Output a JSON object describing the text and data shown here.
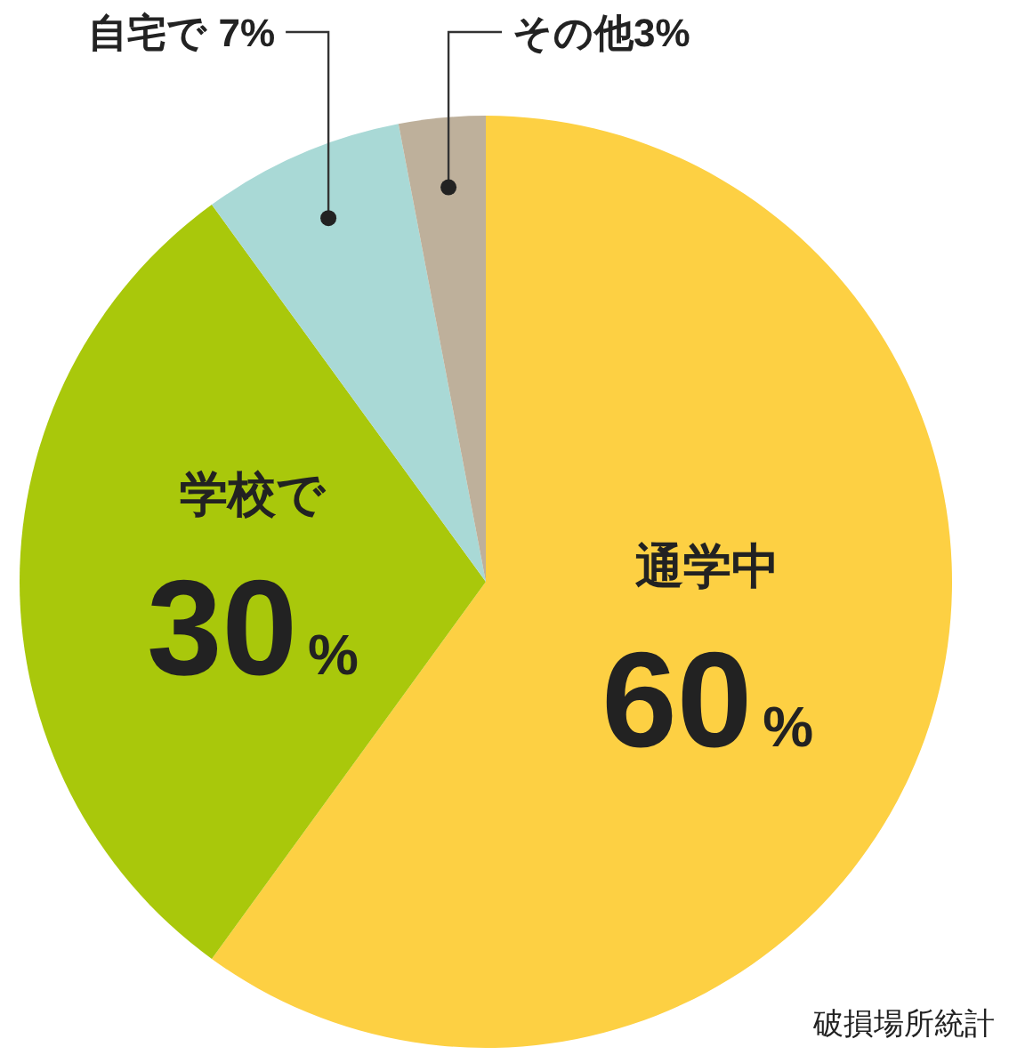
{
  "chart_data": {
    "type": "pie",
    "categories": [
      "通学中",
      "学校で",
      "自宅で",
      "その他"
    ],
    "values": [
      60,
      30,
      7,
      3
    ],
    "colors": [
      "#fdd043",
      "#a9c80b",
      "#a9d9d6",
      "#beb09b"
    ],
    "value_labels": [
      "60%",
      "30%",
      "7%",
      "3%"
    ],
    "annotations": [
      "破損場所統計"
    ]
  }
}
